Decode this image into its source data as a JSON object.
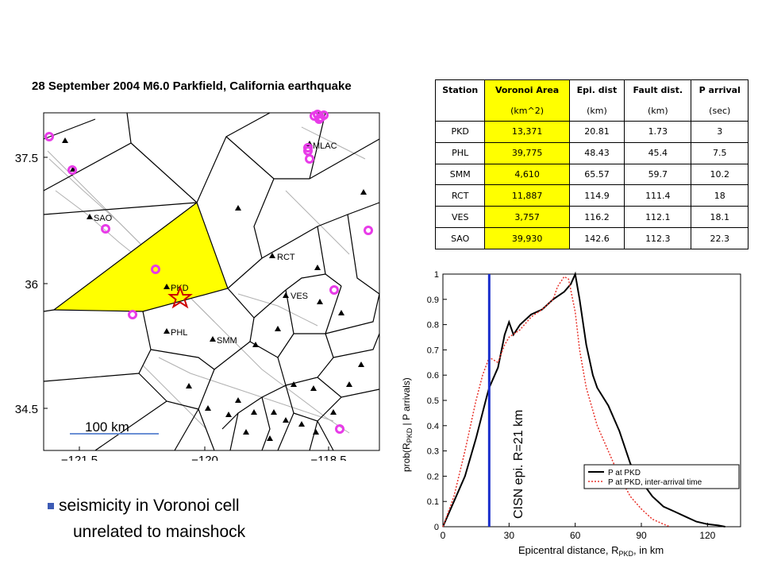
{
  "map": {
    "title": "28 September 2004 M6.0 Parkfield, California earthquake",
    "scale_label": "100 km",
    "lat_ticks": [
      "37.5",
      "36",
      "34.5"
    ],
    "lon_ticks": [
      "−121.5",
      "−120",
      "−118.5"
    ],
    "stations": [
      {
        "code": "SAO"
      },
      {
        "code": "PKD"
      },
      {
        "code": "PHL"
      },
      {
        "code": "SMM"
      },
      {
        "code": "RCT"
      },
      {
        "code": "VES"
      },
      {
        "code": "MLAC"
      }
    ],
    "highlight_color": "#ffff00",
    "seismicity_color": "#e83be8",
    "epicenter_color": "#cc0000"
  },
  "table": {
    "headers": [
      "Station",
      "Voronoi Area",
      "Epi. dist",
      "Fault dist.",
      "P arrival"
    ],
    "units": [
      "",
      "(km^2)",
      "(km)",
      "(km)",
      "(sec)"
    ],
    "rows": [
      [
        "PKD",
        "13,371",
        "20.81",
        "1.73",
        "3"
      ],
      [
        "PHL",
        "39,775",
        "48.43",
        "45.4",
        "7.5"
      ],
      [
        "SMM",
        "4,610",
        "65.57",
        "59.7",
        "10.2"
      ],
      [
        "RCT",
        "11,887",
        "114.9",
        "111.4",
        "18"
      ],
      [
        "VES",
        "3,757",
        "116.2",
        "112.1",
        "18.1"
      ],
      [
        "SAO",
        "39,930",
        "142.6",
        "112.3",
        "22.3"
      ]
    ]
  },
  "bullets": {
    "line1": "seismicity in Voronoi cell",
    "line2": "unrelated to mainshock"
  },
  "chart_data": {
    "type": "line",
    "ylabel_parts": [
      "prob(R",
      "PKD",
      " | P arrivals)"
    ],
    "xlabel_parts": [
      "Epicentral distance, R",
      "PKD",
      ", in  km"
    ],
    "xlim": [
      0,
      135
    ],
    "ylim": [
      0,
      1
    ],
    "x_ticks": [
      "0",
      "30",
      "60",
      "90",
      "120"
    ],
    "y_ticks": [
      "0",
      "0.1",
      "0.2",
      "0.3",
      "0.4",
      "0.5",
      "0.6",
      "0.7",
      "0.8",
      "0.9",
      "1"
    ],
    "vline": {
      "x": 21,
      "color": "#1a2ecc",
      "label": "CISN epi. R=21 km"
    },
    "legend_position": "bottom-right",
    "series": [
      {
        "name": "P at PKD",
        "color": "#000000",
        "style": "solid",
        "x": [
          0,
          5,
          10,
          15,
          20,
          21,
          25,
          28,
          30,
          32,
          35,
          40,
          45,
          50,
          55,
          58,
          60,
          62,
          65,
          68,
          70,
          75,
          80,
          85,
          90,
          95,
          100,
          105,
          110,
          115,
          120,
          125,
          128
        ],
        "y": [
          0.0,
          0.1,
          0.2,
          0.35,
          0.52,
          0.55,
          0.63,
          0.76,
          0.81,
          0.76,
          0.8,
          0.84,
          0.86,
          0.9,
          0.93,
          0.96,
          1.0,
          0.9,
          0.72,
          0.6,
          0.55,
          0.48,
          0.38,
          0.25,
          0.18,
          0.12,
          0.08,
          0.06,
          0.04,
          0.02,
          0.01,
          0.005,
          0.0
        ]
      },
      {
        "name": "P at PKD, inter-arrival time",
        "color": "#e8332b",
        "style": "dotted",
        "x": [
          0,
          5,
          10,
          15,
          18,
          21,
          25,
          28,
          30,
          35,
          40,
          45,
          50,
          52,
          55,
          57,
          60,
          62,
          65,
          70,
          75,
          80,
          85,
          90,
          95,
          100,
          103
        ],
        "y": [
          0.0,
          0.12,
          0.3,
          0.5,
          0.6,
          0.67,
          0.65,
          0.72,
          0.75,
          0.78,
          0.83,
          0.86,
          0.9,
          0.95,
          0.99,
          0.98,
          0.85,
          0.7,
          0.55,
          0.4,
          0.3,
          0.2,
          0.12,
          0.07,
          0.03,
          0.01,
          0.0
        ]
      }
    ]
  }
}
